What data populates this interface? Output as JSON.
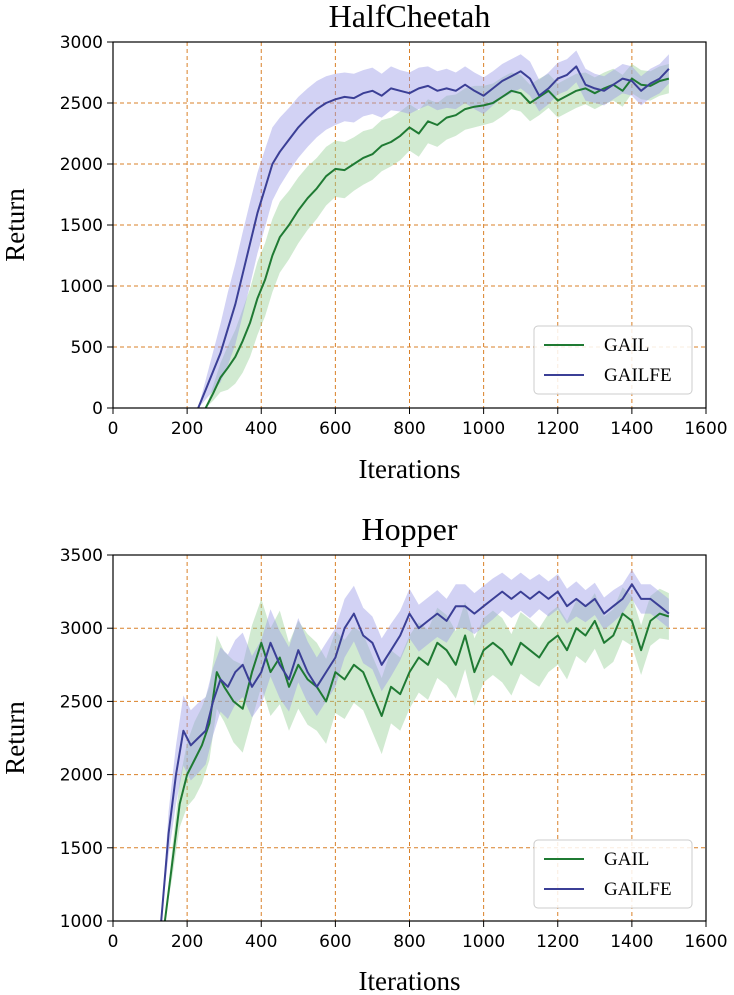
{
  "colors": {
    "gail": "#1f7a33",
    "gail_band": "#9ad19a",
    "gailfe": "#3b3f96",
    "gailfe_band": "#9c9be6",
    "grid": "#d98028"
  },
  "chart_data": [
    {
      "type": "line",
      "title": "HalfCheetah",
      "xlabel": "Iterations",
      "ylabel": "Return",
      "xlim": [
        0,
        1600
      ],
      "ylim": [
        0,
        3000
      ],
      "xticks": [
        0,
        200,
        400,
        600,
        800,
        1000,
        1200,
        1400,
        1600
      ],
      "yticks": [
        0,
        500,
        1000,
        1500,
        2000,
        2500,
        3000
      ],
      "grid": true,
      "legend_position": "bottom-right",
      "series": [
        {
          "name": "GAIL",
          "x": [
            250,
            270,
            290,
            310,
            330,
            350,
            370,
            390,
            410,
            430,
            450,
            475,
            500,
            525,
            550,
            575,
            600,
            625,
            650,
            675,
            700,
            725,
            750,
            775,
            800,
            825,
            850,
            875,
            900,
            925,
            950,
            975,
            1000,
            1025,
            1050,
            1075,
            1100,
            1125,
            1150,
            1175,
            1200,
            1225,
            1250,
            1275,
            1300,
            1325,
            1350,
            1375,
            1400,
            1425,
            1450,
            1475,
            1500
          ],
          "y": [
            0,
            120,
            250,
            330,
            420,
            550,
            700,
            900,
            1050,
            1250,
            1400,
            1500,
            1620,
            1720,
            1800,
            1900,
            1960,
            1950,
            2000,
            2050,
            2080,
            2150,
            2180,
            2230,
            2300,
            2250,
            2350,
            2320,
            2380,
            2400,
            2450,
            2470,
            2480,
            2500,
            2550,
            2600,
            2580,
            2500,
            2550,
            2600,
            2520,
            2560,
            2600,
            2620,
            2580,
            2620,
            2650,
            2600,
            2700,
            2650,
            2640,
            2680,
            2700
          ],
          "band_width": [
            0,
            60,
            120,
            180,
            220,
            260,
            280,
            300,
            300,
            300,
            290,
            280,
            270,
            260,
            250,
            240,
            230,
            230,
            220,
            220,
            210,
            210,
            200,
            200,
            190,
            190,
            180,
            180,
            180,
            170,
            170,
            170,
            160,
            160,
            160,
            150,
            150,
            150,
            150,
            140,
            140,
            140,
            140,
            130,
            130,
            130,
            130,
            130,
            120,
            120,
            120,
            120,
            120
          ]
        },
        {
          "name": "GAILFE",
          "x": [
            230,
            250,
            270,
            290,
            310,
            330,
            350,
            370,
            390,
            410,
            430,
            450,
            475,
            500,
            525,
            550,
            575,
            600,
            625,
            650,
            675,
            700,
            725,
            750,
            775,
            800,
            825,
            850,
            875,
            900,
            925,
            950,
            975,
            1000,
            1025,
            1050,
            1075,
            1100,
            1125,
            1150,
            1175,
            1200,
            1225,
            1250,
            1275,
            1300,
            1325,
            1350,
            1375,
            1400,
            1425,
            1450,
            1475,
            1500
          ],
          "y": [
            0,
            150,
            300,
            450,
            650,
            850,
            1100,
            1350,
            1600,
            1800,
            2000,
            2100,
            2200,
            2300,
            2380,
            2450,
            2500,
            2530,
            2550,
            2540,
            2580,
            2600,
            2560,
            2620,
            2600,
            2580,
            2620,
            2640,
            2600,
            2620,
            2600,
            2650,
            2600,
            2560,
            2620,
            2680,
            2720,
            2760,
            2700,
            2560,
            2620,
            2700,
            2730,
            2800,
            2650,
            2620,
            2600,
            2650,
            2700,
            2680,
            2600,
            2660,
            2700,
            2780
          ],
          "band_width": [
            0,
            80,
            160,
            240,
            300,
            330,
            340,
            340,
            330,
            320,
            300,
            280,
            260,
            250,
            240,
            230,
            220,
            210,
            200,
            200,
            190,
            190,
            180,
            180,
            170,
            170,
            170,
            160,
            160,
            160,
            150,
            150,
            150,
            150,
            140,
            140,
            140,
            140,
            140,
            130,
            130,
            130,
            130,
            130,
            130,
            120,
            120,
            120,
            120,
            120,
            120,
            120,
            120,
            120
          ]
        }
      ]
    },
    {
      "type": "line",
      "title": "Hopper",
      "xlabel": "Iterations",
      "ylabel": "Return",
      "xlim": [
        0,
        1600
      ],
      "ylim": [
        1000,
        3500
      ],
      "xticks": [
        0,
        200,
        400,
        600,
        800,
        1000,
        1200,
        1400,
        1600
      ],
      "yticks": [
        1000,
        1500,
        2000,
        2500,
        3000,
        3500
      ],
      "grid": true,
      "legend_position": "bottom-right",
      "series": [
        {
          "name": "GAIL",
          "x": [
            140,
            160,
            180,
            200,
            220,
            240,
            260,
            280,
            300,
            325,
            350,
            375,
            400,
            425,
            450,
            475,
            500,
            525,
            550,
            575,
            600,
            625,
            650,
            675,
            700,
            725,
            750,
            775,
            800,
            825,
            850,
            875,
            900,
            925,
            950,
            975,
            1000,
            1025,
            1050,
            1075,
            1100,
            1125,
            1150,
            1175,
            1200,
            1225,
            1250,
            1275,
            1300,
            1325,
            1350,
            1375,
            1400,
            1425,
            1450,
            1475,
            1500
          ],
          "y": [
            1000,
            1400,
            1800,
            2000,
            2100,
            2200,
            2350,
            2700,
            2600,
            2500,
            2450,
            2700,
            2900,
            2700,
            2800,
            2600,
            2750,
            2650,
            2600,
            2500,
            2700,
            2650,
            2750,
            2700,
            2550,
            2400,
            2600,
            2550,
            2700,
            2800,
            2750,
            2900,
            2850,
            2750,
            2950,
            2700,
            2850,
            2900,
            2850,
            2750,
            2900,
            2850,
            2800,
            2900,
            2950,
            2850,
            3000,
            2950,
            3050,
            2900,
            2950,
            3100,
            3050,
            2850,
            3050,
            3100,
            3080
          ],
          "band_width": [
            0,
            100,
            160,
            220,
            260,
            260,
            250,
            250,
            240,
            280,
            300,
            320,
            300,
            300,
            320,
            300,
            300,
            310,
            300,
            290,
            280,
            270,
            260,
            260,
            260,
            260,
            250,
            250,
            250,
            240,
            240,
            240,
            240,
            230,
            230,
            230,
            220,
            220,
            220,
            210,
            210,
            210,
            200,
            200,
            200,
            200,
            190,
            190,
            190,
            180,
            180,
            180,
            170,
            170,
            170,
            170,
            160
          ]
        },
        {
          "name": "GAILFE",
          "x": [
            130,
            150,
            170,
            190,
            210,
            230,
            250,
            270,
            290,
            310,
            330,
            350,
            375,
            400,
            425,
            450,
            475,
            500,
            525,
            550,
            575,
            600,
            625,
            650,
            675,
            700,
            725,
            750,
            775,
            800,
            825,
            850,
            875,
            900,
            925,
            950,
            975,
            1000,
            1025,
            1050,
            1075,
            1100,
            1125,
            1150,
            1175,
            1200,
            1225,
            1250,
            1275,
            1300,
            1325,
            1350,
            1375,
            1400,
            1425,
            1450,
            1475,
            1500
          ],
          "y": [
            1000,
            1600,
            2000,
            2300,
            2200,
            2250,
            2300,
            2500,
            2650,
            2600,
            2700,
            2750,
            2600,
            2700,
            2900,
            2750,
            2650,
            2850,
            2700,
            2600,
            2700,
            2800,
            3000,
            3100,
            2950,
            2900,
            2750,
            2850,
            2950,
            3100,
            3000,
            3050,
            3100,
            3050,
            3150,
            3150,
            3100,
            3150,
            3200,
            3250,
            3200,
            3250,
            3200,
            3250,
            3200,
            3250,
            3150,
            3200,
            3150,
            3200,
            3100,
            3150,
            3200,
            3300,
            3200,
            3200,
            3150,
            3100
          ],
          "band_width": [
            0,
            150,
            200,
            240,
            240,
            240,
            230,
            230,
            220,
            220,
            220,
            220,
            210,
            220,
            230,
            230,
            220,
            220,
            210,
            200,
            200,
            200,
            200,
            190,
            190,
            180,
            180,
            180,
            170,
            170,
            160,
            160,
            160,
            150,
            150,
            150,
            140,
            140,
            140,
            130,
            130,
            130,
            130,
            120,
            120,
            120,
            120,
            120,
            110,
            110,
            110,
            110,
            100,
            100,
            100,
            100,
            100,
            100
          ]
        }
      ]
    }
  ]
}
